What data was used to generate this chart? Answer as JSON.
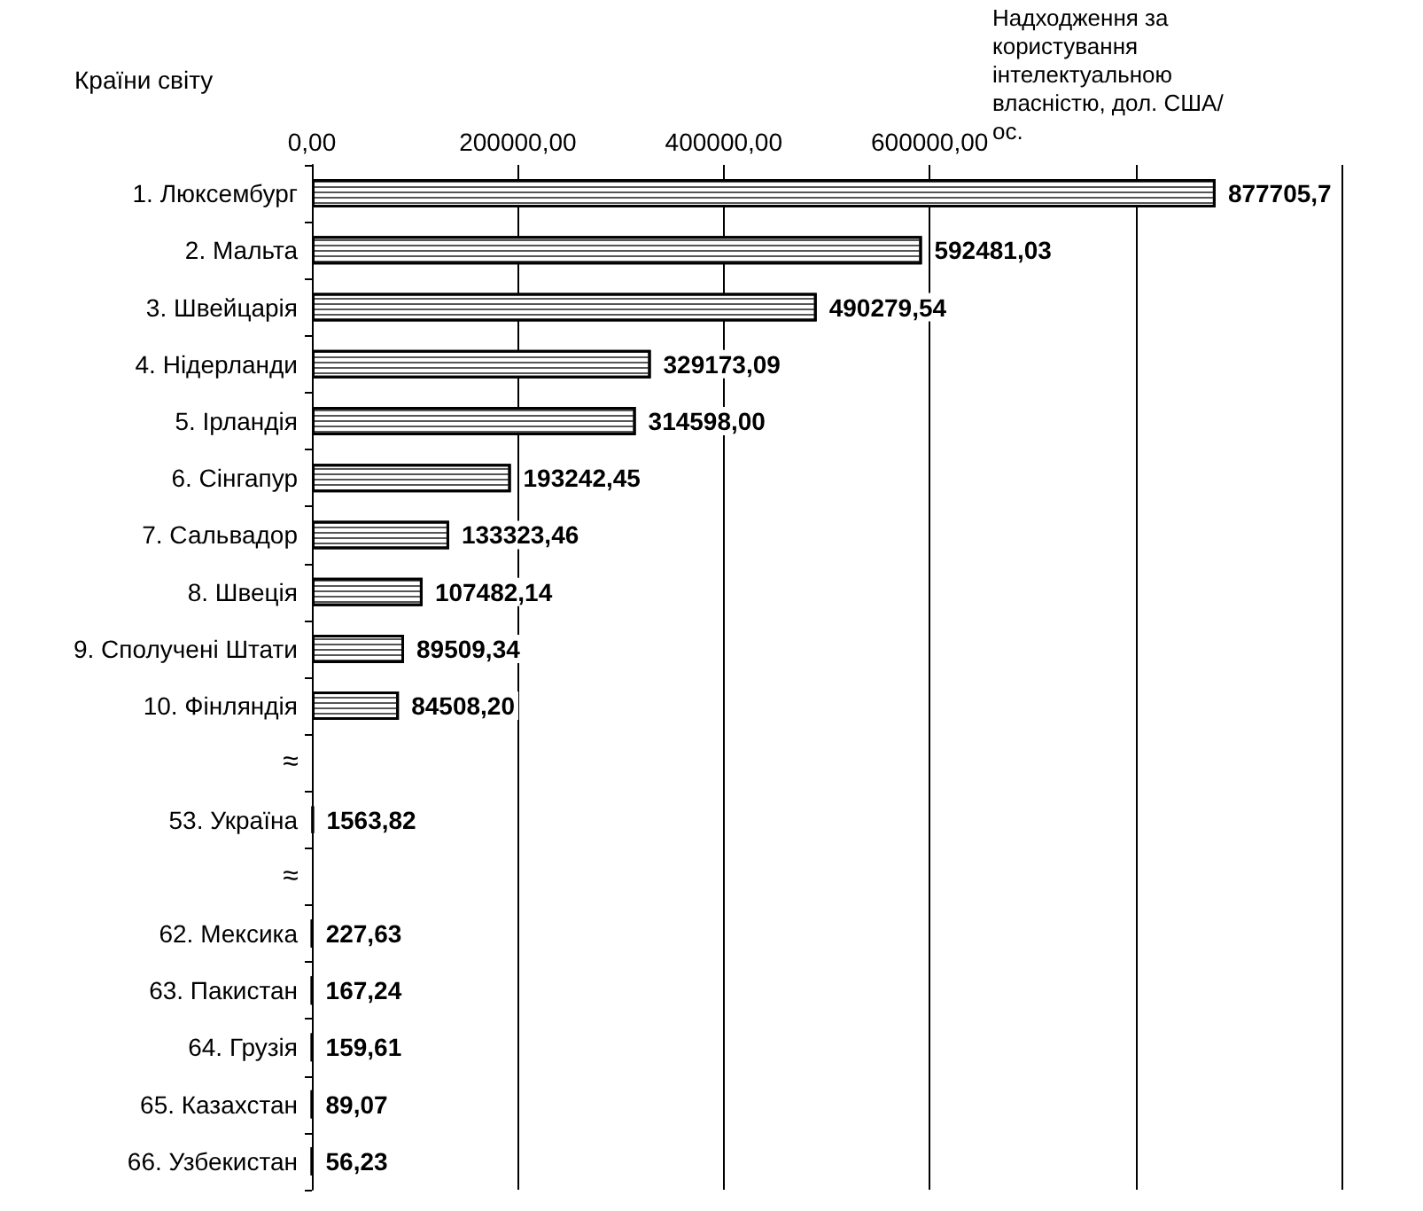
{
  "chart_data": {
    "type": "bar",
    "orientation": "horizontal",
    "ylabel": "Країни світу",
    "xlabel": "Надходження за користування інтелектуальною власністю, дол. США/ос.",
    "categories": [
      "1. Люксембург",
      "2. Мальта",
      "3. Швейцарія",
      "4. Нідерланди",
      "5. Ірландія",
      "6. Сінгапур",
      "7. Сальвадор",
      "8. Швеція",
      "9. Сполучені Штати",
      "10. Фінляндія",
      null,
      "53. Україна",
      null,
      "62. Мексика",
      "63. Пакистан",
      "64. Грузія",
      "65. Казахстан",
      "66. Узбекистан"
    ],
    "values": [
      877705.7,
      592481.03,
      490279.54,
      329173.09,
      314598.0,
      193242.45,
      133323.46,
      107482.14,
      89509.34,
      84508.2,
      null,
      1563.82,
      null,
      227.63,
      167.24,
      159.61,
      89.07,
      56.23
    ],
    "value_labels": [
      "877705,7",
      "592481,03",
      "490279,54",
      "329173,09",
      "314598,00",
      "193242,45",
      "133323,46",
      "107482,14",
      "89509,34",
      "84508,20",
      null,
      "1563,82",
      null,
      "227,63",
      "167,24",
      "159,61",
      "89,07",
      "56,23"
    ],
    "colors": [
      "#ffffff",
      "#ffffff",
      "#ffffff",
      "#ffffff",
      "#ffffff",
      "#ffffff",
      "#ffffff",
      "#ffffff",
      "#ffffff",
      "#ffffff",
      null,
      "#000000",
      null,
      "#000000",
      "#000000",
      "#000000",
      "#000000",
      "#000000"
    ],
    "xlim": [
      0,
      1000000
    ],
    "xticks": [
      {
        "value": 0,
        "label": "0,00"
      },
      {
        "value": 200000,
        "label": "200000,00"
      },
      {
        "value": 400000,
        "label": "400000,00"
      },
      {
        "value": 600000,
        "label": "600000,00"
      },
      {
        "value": 800000,
        "label": null
      },
      {
        "value": 1000000,
        "label": null
      }
    ],
    "grid": "x",
    "annotations": [
      "≈",
      "≈"
    ]
  }
}
